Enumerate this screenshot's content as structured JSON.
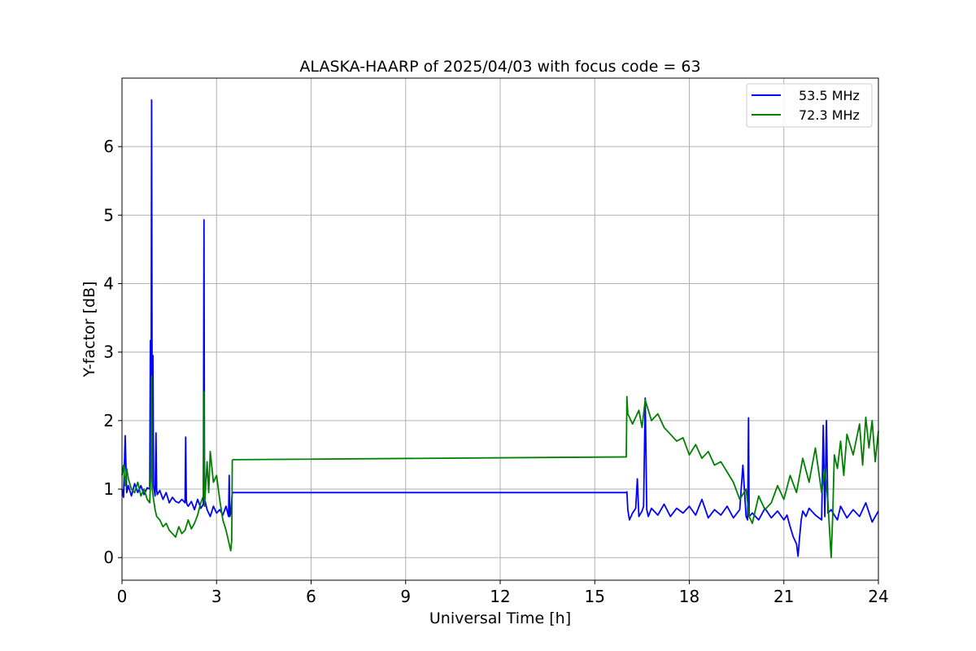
{
  "chart_data": {
    "type": "line",
    "title": "ALASKA-HAARP of 2025/04/03 with focus code = 63",
    "xlabel": "Universal Time [h]",
    "ylabel": "Y-factor [dB]",
    "xlim": [
      0,
      24
    ],
    "ylim": [
      -0.33,
      7.0
    ],
    "xticks": [
      0,
      3,
      6,
      9,
      12,
      15,
      18,
      21,
      24
    ],
    "xtick_labels": [
      "0",
      "3",
      "6",
      "9",
      "12",
      "15",
      "18",
      "21",
      "24"
    ],
    "yticks": [
      0,
      1,
      2,
      3,
      4,
      5,
      6
    ],
    "ytick_labels": [
      "0",
      "1",
      "2",
      "3",
      "4",
      "5",
      "6"
    ],
    "grid": true,
    "legend_position": "top-right",
    "series": [
      {
        "name": "53.5 MHz",
        "color": "#0000ff",
        "x": [
          0,
          0.05,
          0.1,
          0.15,
          0.2,
          0.3,
          0.4,
          0.5,
          0.6,
          0.7,
          0.8,
          0.88,
          0.9,
          0.92,
          0.94,
          0.96,
          0.98,
          1.0,
          1.05,
          1.08,
          1.1,
          1.12,
          1.2,
          1.3,
          1.4,
          1.5,
          1.6,
          1.7,
          1.8,
          1.9,
          2.0,
          2.02,
          2.04,
          2.06,
          2.1,
          2.2,
          2.3,
          2.4,
          2.5,
          2.58,
          2.6,
          2.62,
          2.64,
          2.7,
          2.8,
          2.9,
          3.0,
          3.1,
          3.2,
          3.3,
          3.38,
          3.4,
          3.42,
          3.45,
          3.5,
          3.52,
          16.0,
          16.02,
          16.05,
          16.1,
          16.2,
          16.3,
          16.35,
          16.4,
          16.5,
          16.55,
          16.6,
          16.65,
          16.7,
          16.8,
          17.0,
          17.2,
          17.4,
          17.6,
          17.8,
          18.0,
          18.2,
          18.4,
          18.6,
          18.8,
          19.0,
          19.2,
          19.4,
          19.6,
          19.7,
          19.8,
          19.85,
          19.88,
          19.9,
          20.0,
          20.2,
          20.4,
          20.6,
          20.8,
          21.0,
          21.1,
          21.2,
          21.3,
          21.4,
          21.45,
          21.5,
          21.55,
          21.6,
          21.7,
          21.8,
          22.0,
          22.2,
          22.25,
          22.3,
          22.35,
          22.4,
          22.5,
          22.6,
          22.7,
          22.8,
          23.0,
          23.2,
          23.4,
          23.6,
          23.8,
          24.0
        ],
        "y": [
          1.0,
          0.88,
          1.78,
          0.95,
          1.05,
          0.9,
          1.08,
          0.95,
          1.05,
          0.92,
          1.02,
          1.0,
          3.17,
          1.2,
          6.68,
          1.1,
          2.95,
          1.05,
          0.9,
          1.82,
          1.0,
          0.92,
          0.98,
          0.85,
          0.95,
          0.8,
          0.88,
          0.82,
          0.8,
          0.85,
          0.8,
          1.76,
          0.85,
          0.78,
          0.75,
          0.82,
          0.7,
          0.85,
          0.72,
          0.78,
          4.93,
          0.75,
          0.82,
          0.7,
          0.6,
          0.75,
          0.65,
          0.7,
          0.62,
          0.75,
          0.6,
          1.2,
          0.6,
          0.65,
          0.95,
          0.95,
          0.95,
          0.96,
          0.7,
          0.55,
          0.65,
          0.72,
          1.15,
          0.6,
          0.68,
          0.75,
          2.33,
          0.7,
          0.6,
          0.72,
          0.62,
          0.78,
          0.6,
          0.72,
          0.65,
          0.75,
          0.62,
          0.85,
          0.58,
          0.7,
          0.62,
          0.75,
          0.58,
          0.7,
          1.35,
          0.6,
          0.55,
          2.04,
          0.6,
          0.65,
          0.55,
          0.72,
          0.58,
          0.68,
          0.55,
          0.62,
          0.45,
          0.3,
          0.2,
          0.02,
          0.3,
          0.55,
          0.68,
          0.6,
          0.72,
          0.62,
          0.55,
          1.93,
          0.6,
          2.0,
          0.65,
          0.7,
          0.62,
          0.55,
          0.75,
          0.58,
          0.7,
          0.6,
          0.8,
          0.52,
          0.68
        ]
      },
      {
        "name": "72.3 MHz",
        "color": "#008000",
        "x": [
          0,
          0.05,
          0.1,
          0.15,
          0.2,
          0.3,
          0.4,
          0.5,
          0.6,
          0.7,
          0.8,
          0.88,
          0.92,
          0.94,
          0.96,
          1.0,
          1.05,
          1.1,
          1.2,
          1.3,
          1.4,
          1.5,
          1.6,
          1.7,
          1.8,
          1.9,
          2.0,
          2.1,
          2.2,
          2.3,
          2.4,
          2.5,
          2.58,
          2.6,
          2.62,
          2.7,
          2.75,
          2.8,
          2.9,
          3.0,
          3.1,
          3.2,
          3.3,
          3.4,
          3.45,
          3.48,
          3.5,
          3.52,
          16.0,
          16.02,
          16.05,
          16.2,
          16.4,
          16.5,
          16.6,
          16.8,
          17.0,
          17.2,
          17.4,
          17.6,
          17.8,
          18.0,
          18.2,
          18.4,
          18.6,
          18.8,
          19.0,
          19.2,
          19.4,
          19.6,
          19.8,
          19.9,
          20.0,
          20.2,
          20.4,
          20.6,
          20.8,
          21.0,
          21.2,
          21.4,
          21.6,
          21.8,
          22.0,
          22.2,
          22.3,
          22.4,
          22.5,
          22.55,
          22.6,
          22.7,
          22.8,
          22.9,
          23.0,
          23.2,
          23.4,
          23.5,
          23.6,
          23.7,
          23.8,
          23.9,
          24.0
        ],
        "y": [
          1.2,
          1.35,
          1.05,
          1.3,
          1.15,
          1.0,
          0.95,
          1.1,
          0.9,
          1.0,
          0.85,
          0.8,
          1.3,
          2.65,
          1.0,
          0.85,
          0.7,
          0.6,
          0.55,
          0.45,
          0.5,
          0.4,
          0.35,
          0.3,
          0.45,
          0.35,
          0.4,
          0.55,
          0.42,
          0.5,
          0.62,
          0.8,
          0.9,
          2.42,
          0.75,
          1.4,
          0.95,
          1.55,
          1.1,
          1.2,
          0.85,
          0.55,
          0.4,
          0.2,
          0.1,
          0.25,
          1.42,
          1.43,
          1.47,
          2.35,
          2.1,
          1.95,
          2.15,
          1.9,
          2.3,
          2.0,
          2.1,
          1.9,
          1.8,
          1.7,
          1.75,
          1.5,
          1.65,
          1.45,
          1.55,
          1.35,
          1.4,
          1.25,
          1.1,
          0.85,
          1.0,
          0.6,
          0.5,
          0.9,
          0.7,
          0.8,
          1.05,
          0.85,
          1.2,
          0.95,
          1.45,
          1.1,
          1.6,
          0.95,
          1.3,
          0.8,
          0.0,
          0.6,
          1.5,
          1.3,
          1.7,
          1.2,
          1.8,
          1.5,
          1.95,
          1.35,
          2.05,
          1.6,
          2.0,
          1.4,
          1.85
        ]
      }
    ]
  }
}
